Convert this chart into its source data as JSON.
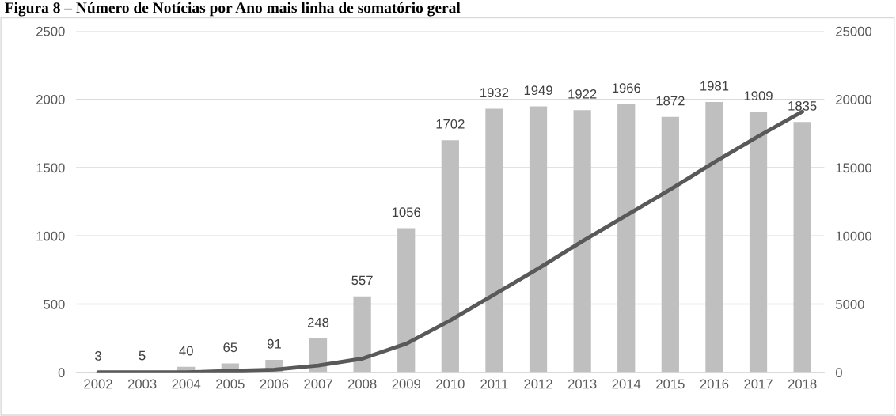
{
  "chart_data": {
    "type": "bar",
    "title": "Figura 8 – Número de Notícias por Ano mais linha de somatório geral",
    "categories": [
      "2002",
      "2003",
      "2004",
      "2005",
      "2006",
      "2007",
      "2008",
      "2009",
      "2010",
      "2011",
      "2012",
      "2013",
      "2014",
      "2015",
      "2016",
      "2017",
      "2018"
    ],
    "series": [
      {
        "color": "#bfbfbf",
        "values": [
          3,
          5,
          40,
          65,
          91,
          248,
          557,
          1056,
          1702,
          1932,
          1949,
          1922,
          1966,
          1872,
          1981,
          1909,
          1835
        ],
        "data_labels": true
      },
      {
        "type": "line",
        "axis": "y2",
        "color": "#595959",
        "line_style": "solid",
        "marker": "none",
        "values": [
          0,
          0,
          0,
          100,
          200,
          500,
          1000,
          2100,
          3800,
          5700,
          7600,
          9600,
          11500,
          13400,
          15400,
          17300,
          19100
        ]
      }
    ],
    "ylim": [
      0,
      2500
    ],
    "yticks": [
      0,
      500,
      1000,
      1500,
      2000,
      2500
    ],
    "y2lim": [
      0,
      25000
    ],
    "y2ticks": [
      0,
      5000,
      10000,
      15000,
      20000,
      25000
    ],
    "grid": "y"
  }
}
